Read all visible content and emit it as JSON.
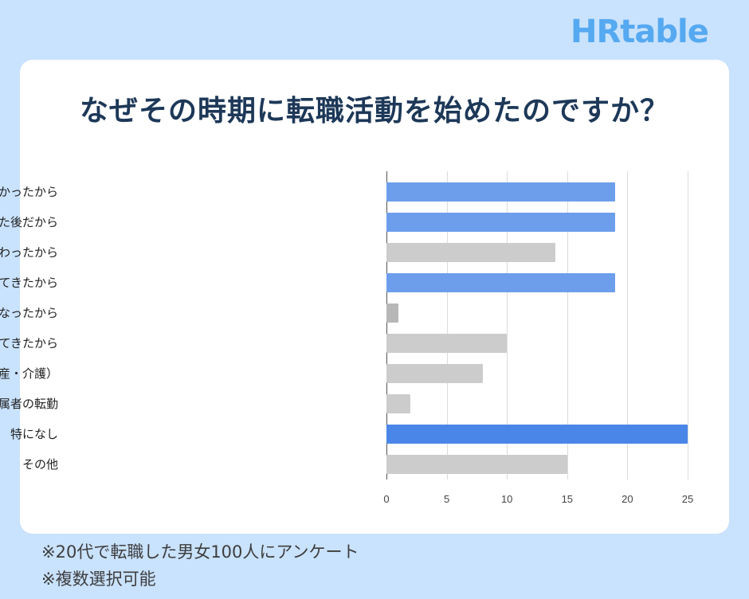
{
  "brand": {
    "logo": "HRtable",
    "color": "#55a9f1"
  },
  "card": {
    "title": "なぜその時期に転職活動を始めたのですか？"
  },
  "chart_data": {
    "type": "bar",
    "orientation": "horizontal",
    "title": "なぜその時期に転職活動を始めたのですか？",
    "categories": [
      "年度初め/期が変わるタイミングに入社したかったから",
      "賞与をもらった後だから",
      "繁忙期が終わったから",
      "配属の変更/組織体制の変更により不満が出てきたから",
      "降格/減給になったから",
      "体調を崩し、回復してきたから",
      "ライフイベント（結婚・出産・介護）",
      "配属者の転勤",
      "特になし",
      "その他"
    ],
    "values": [
      19,
      19,
      14,
      19,
      1,
      10,
      8,
      2,
      25,
      15
    ],
    "colors": [
      "#6d9eeb",
      "#6d9eeb",
      "#cccccc",
      "#6d9eeb",
      "#b7b7b7",
      "#cccccc",
      "#cccccc",
      "#cccccc",
      "#4a86e8",
      "#cccccc"
    ],
    "xlim": [
      0,
      25
    ],
    "xticks": [
      "0",
      "5",
      "10",
      "15",
      "20",
      "25"
    ],
    "xlabel": "",
    "ylabel": "",
    "grid": true,
    "legend": "none"
  },
  "notes": [
    "※20代で転職した男女100人にアンケート",
    "※複数選択可能"
  ]
}
